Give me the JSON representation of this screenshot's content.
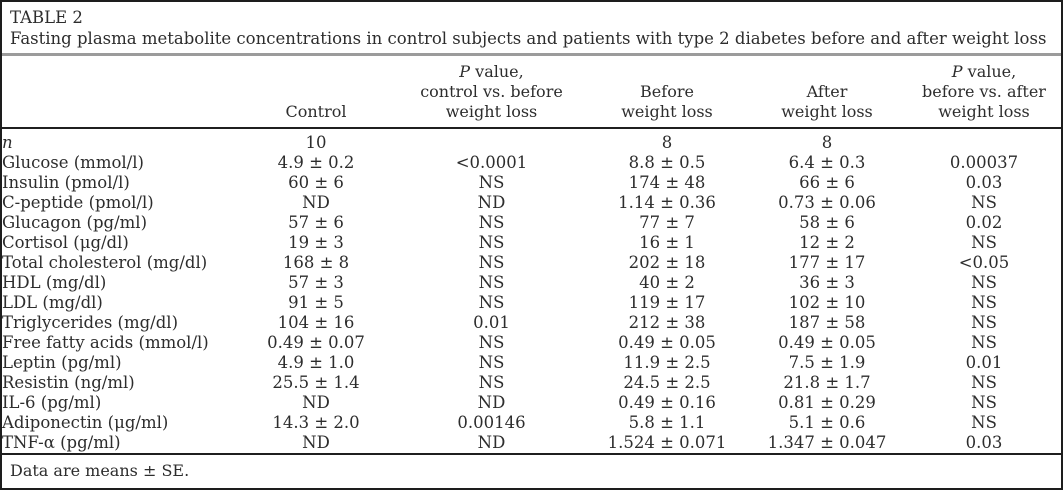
{
  "page": {
    "title": "TABLE 2",
    "subtitle": "Fasting plasma metabolite concentrations in control subjects and patients with type 2 diabetes before and after weight loss",
    "footnote": "Data are means ± SE."
  },
  "colors": {
    "text": "#2d2d2d",
    "rule_black": "#1f1f1f",
    "rule_gray": "#9b9b9b",
    "background": "#ffffff"
  },
  "table": {
    "columns": [
      {
        "key": "parameter",
        "lines": []
      },
      {
        "key": "control",
        "lines": [
          [
            {
              "t": "Control",
              "i": false
            }
          ]
        ]
      },
      {
        "key": "p_control_vs_before",
        "lines": [
          [
            {
              "t": "P",
              "i": true
            },
            {
              "t": " value,",
              "i": false
            }
          ],
          [
            {
              "t": "control vs. before",
              "i": false
            }
          ],
          [
            {
              "t": "weight loss",
              "i": false
            }
          ]
        ]
      },
      {
        "key": "before_weight_loss",
        "lines": [
          [
            {
              "t": "Before",
              "i": false
            }
          ],
          [
            {
              "t": "weight loss",
              "i": false
            }
          ]
        ]
      },
      {
        "key": "after_weight_loss",
        "lines": [
          [
            {
              "t": "After",
              "i": false
            }
          ],
          [
            {
              "t": "weight loss",
              "i": false
            }
          ]
        ]
      },
      {
        "key": "p_before_vs_after",
        "lines": [
          [
            {
              "t": "P",
              "i": true
            },
            {
              "t": " value,",
              "i": false
            }
          ],
          [
            {
              "t": "before vs. after",
              "i": false
            }
          ],
          [
            {
              "t": "weight loss",
              "i": false
            }
          ]
        ]
      }
    ],
    "rows": [
      {
        "label": "n",
        "label_italic": true,
        "cells": [
          "10",
          "",
          "8",
          "8",
          ""
        ]
      },
      {
        "label": "Glucose (mmol/l)",
        "cells": [
          "4.9 ± 0.2",
          "<0.0001",
          "8.8 ± 0.5",
          "6.4 ± 0.3",
          "0.00037"
        ]
      },
      {
        "label": "Insulin (pmol/l)",
        "cells": [
          "60 ± 6",
          "NS",
          "174 ± 48",
          "66 ± 6",
          "0.03"
        ]
      },
      {
        "label": "C-peptide (pmol/l)",
        "cells": [
          "ND",
          "ND",
          "1.14 ± 0.36",
          "0.73 ± 0.06",
          "NS"
        ]
      },
      {
        "label": "Glucagon (pg/ml)",
        "cells": [
          "57 ± 6",
          "NS",
          "77 ± 7",
          "58 ± 6",
          "0.02"
        ]
      },
      {
        "label": "Cortisol (μg/dl)",
        "cells": [
          "19 ± 3",
          "NS",
          "16 ± 1",
          "12 ± 2",
          "NS"
        ]
      },
      {
        "label": "Total cholesterol (mg/dl)",
        "cells": [
          "168 ± 8",
          "NS",
          "202 ± 18",
          "177 ± 17",
          "<0.05"
        ]
      },
      {
        "label": "HDL (mg/dl)",
        "cells": [
          "57 ± 3",
          "NS",
          "40 ± 2",
          "36 ± 3",
          "NS"
        ]
      },
      {
        "label": "LDL (mg/dl)",
        "cells": [
          "91 ± 5",
          "NS",
          "119 ± 17",
          "102 ± 10",
          "NS"
        ]
      },
      {
        "label": "Triglycerides (mg/dl)",
        "cells": [
          "104 ± 16",
          "0.01",
          "212 ± 38",
          "187 ± 58",
          "NS"
        ]
      },
      {
        "label": "Free fatty acids (mmol/l)",
        "cells": [
          "0.49 ± 0.07",
          "NS",
          "0.49 ± 0.05",
          "0.49 ± 0.05",
          "NS"
        ]
      },
      {
        "label": "Leptin (pg/ml)",
        "cells": [
          "4.9 ± 1.0",
          "NS",
          "11.9 ± 2.5",
          "7.5 ± 1.9",
          "0.01"
        ]
      },
      {
        "label": "Resistin (ng/ml)",
        "cells": [
          "25.5 ± 1.4",
          "NS",
          "24.5 ± 2.5",
          "21.8 ± 1.7",
          "NS"
        ]
      },
      {
        "label": "IL-6 (pg/ml)",
        "cells": [
          "ND",
          "ND",
          "0.49 ± 0.16",
          "0.81 ± 0.29",
          "NS"
        ]
      },
      {
        "label": "Adiponectin (μg/ml)",
        "cells": [
          "14.3 ± 2.0",
          "0.00146",
          "5.8 ± 1.1",
          "5.1 ± 0.6",
          "NS"
        ]
      },
      {
        "label": "TNF-α (pg/ml)",
        "cells": [
          "ND",
          "ND",
          "1.524 ± 0.071",
          "1.347 ± 0.047",
          "0.03"
        ]
      }
    ]
  }
}
